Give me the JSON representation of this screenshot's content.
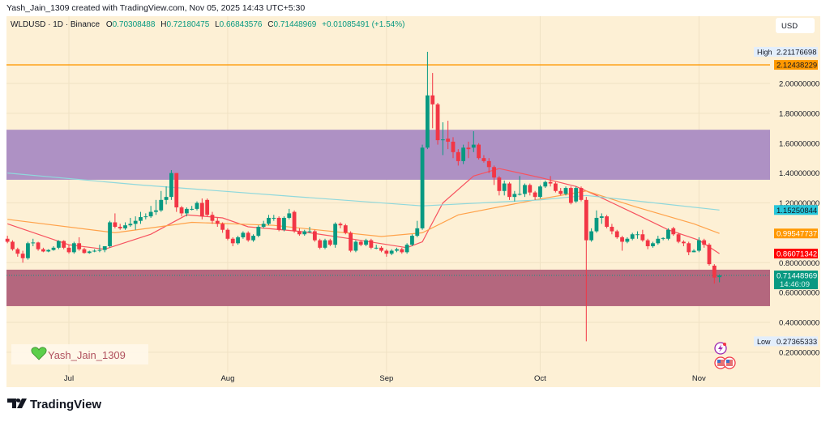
{
  "header": {
    "credit": "Yash_Jain_1309 created with TradingView.com, Nov 05, 2025 14:43 UTC+5:30"
  },
  "legend": {
    "symbol": "WLDUSD · 1D · Binance",
    "open_label": "O",
    "open": "0.70308488",
    "high_label": "H",
    "high": "0.72180475",
    "low_label": "L",
    "low": "0.66843576",
    "close_label": "C",
    "close": "0.71448969",
    "change": "+0.01085491 (+1.54%)"
  },
  "currency_button": "USD",
  "watermark": {
    "icon": "green-heart-icon",
    "text": "Yash_Jain_1309"
  },
  "footer": {
    "logo_text": "TradingView"
  },
  "colors": {
    "background": "#fdf0d5",
    "up": "#089981",
    "down": "#f23645",
    "resistance_zone": "#ae91c4",
    "support_zone": "#b4677e",
    "horizontal_line": "#ff9800",
    "ema_short": "#f7525f",
    "ema_mid": "#ffa24a",
    "ma_long": "#8fd8dc"
  },
  "chart_data": {
    "type": "candlestick",
    "title": "WLDUSD · 1D · Binance",
    "ylim": [
      0.1,
      2.3
    ],
    "y_ticks": [
      "2.00000000",
      "1.80000000",
      "1.60000000",
      "1.40000000",
      "1.20000000",
      "0.80000000",
      "0.60000000",
      "0.40000000",
      "0.20000000"
    ],
    "y_tick_values": [
      2.0,
      1.8,
      1.6,
      1.4,
      1.2,
      0.8,
      0.6,
      0.4,
      0.2
    ],
    "x_ticks": [
      {
        "label": "Jul",
        "date": "2025-07-01"
      },
      {
        "label": "Aug",
        "date": "2025-08-01"
      },
      {
        "label": "Sep",
        "date": "2025-09-01"
      },
      {
        "label": "Oct",
        "date": "2025-10-01"
      },
      {
        "label": "Nov",
        "date": "2025-11-01"
      }
    ],
    "grid": true,
    "price_labels": {
      "high": {
        "label": "High",
        "value": "2.21176698"
      },
      "hline": {
        "value": "2.12438229"
      },
      "ma_long": {
        "value": "1.15250844"
      },
      "ema_mid": {
        "value": "0.99547737"
      },
      "ema_short": {
        "value": "0.86071342"
      },
      "last": {
        "value": "0.71448969",
        "countdown": "14:46:09"
      },
      "low": {
        "label": "Low",
        "value": "0.27365333"
      }
    },
    "horizontal_line": 2.12438229,
    "zones": [
      {
        "name": "resistance",
        "top": 1.69,
        "bottom": 1.355
      },
      {
        "name": "support",
        "top": 0.753,
        "bottom": 0.509
      }
    ],
    "candles_format": [
      "date",
      "open",
      "high",
      "low",
      "close"
    ],
    "candles": [
      [
        "2025-06-19",
        0.96,
        0.98,
        0.93,
        0.94
      ],
      [
        "2025-06-20",
        0.94,
        0.95,
        0.88,
        0.89
      ],
      [
        "2025-06-21",
        0.89,
        0.9,
        0.84,
        0.86
      ],
      [
        "2025-06-22",
        0.86,
        0.88,
        0.8,
        0.83
      ],
      [
        "2025-06-23",
        0.83,
        0.94,
        0.82,
        0.93
      ],
      [
        "2025-06-24",
        0.93,
        0.96,
        0.91,
        0.935
      ],
      [
        "2025-06-25",
        0.935,
        0.94,
        0.88,
        0.89
      ],
      [
        "2025-06-26",
        0.89,
        0.9,
        0.87,
        0.875
      ],
      [
        "2025-06-27",
        0.875,
        0.89,
        0.87,
        0.885
      ],
      [
        "2025-06-28",
        0.885,
        0.91,
        0.88,
        0.9
      ],
      [
        "2025-06-29",
        0.9,
        0.95,
        0.89,
        0.945
      ],
      [
        "2025-06-30",
        0.945,
        0.95,
        0.89,
        0.9
      ],
      [
        "2025-07-01",
        0.9,
        0.92,
        0.86,
        0.87
      ],
      [
        "2025-07-02",
        0.87,
        0.94,
        0.86,
        0.93
      ],
      [
        "2025-07-03",
        0.93,
        0.97,
        0.88,
        0.89
      ],
      [
        "2025-07-04",
        0.89,
        0.9,
        0.86,
        0.865
      ],
      [
        "2025-07-05",
        0.865,
        0.88,
        0.86,
        0.875
      ],
      [
        "2025-07-06",
        0.875,
        0.89,
        0.87,
        0.88
      ],
      [
        "2025-07-07",
        0.88,
        0.92,
        0.87,
        0.885
      ],
      [
        "2025-07-08",
        0.885,
        0.91,
        0.87,
        0.91
      ],
      [
        "2025-07-09",
        0.91,
        1.08,
        0.9,
        1.07
      ],
      [
        "2025-07-10",
        1.07,
        1.13,
        1.03,
        1.04
      ],
      [
        "2025-07-11",
        1.04,
        1.06,
        1.02,
        1.03
      ],
      [
        "2025-07-12",
        1.03,
        1.07,
        1.02,
        1.05
      ],
      [
        "2025-07-13",
        1.05,
        1.1,
        1.04,
        1.06
      ],
      [
        "2025-07-14",
        1.06,
        1.11,
        1.02,
        1.08
      ],
      [
        "2025-07-15",
        1.08,
        1.14,
        1.06,
        1.105
      ],
      [
        "2025-07-16",
        1.105,
        1.13,
        1.09,
        1.11
      ],
      [
        "2025-07-17",
        1.11,
        1.18,
        1.1,
        1.14
      ],
      [
        "2025-07-18",
        1.14,
        1.22,
        1.12,
        1.15
      ],
      [
        "2025-07-19",
        1.15,
        1.28,
        1.14,
        1.22
      ],
      [
        "2025-07-20",
        1.22,
        1.31,
        1.19,
        1.24
      ],
      [
        "2025-07-21",
        1.24,
        1.42,
        1.22,
        1.4
      ],
      [
        "2025-07-22",
        1.4,
        1.4,
        1.14,
        1.17
      ],
      [
        "2025-07-23",
        1.17,
        1.18,
        1.11,
        1.13
      ],
      [
        "2025-07-24",
        1.13,
        1.17,
        1.11,
        1.16
      ],
      [
        "2025-07-25",
        1.16,
        1.18,
        1.15,
        1.16
      ],
      [
        "2025-07-26",
        1.16,
        1.21,
        1.15,
        1.2
      ],
      [
        "2025-07-27",
        1.2,
        1.23,
        1.09,
        1.11
      ],
      [
        "2025-07-28",
        1.22,
        1.23,
        1.11,
        1.12
      ],
      [
        "2025-07-29",
        1.12,
        1.14,
        1.06,
        1.08
      ],
      [
        "2025-07-30",
        1.08,
        1.1,
        1.04,
        1.06
      ],
      [
        "2025-07-31",
        1.06,
        1.07,
        1.0,
        1.02
      ],
      [
        "2025-08-01",
        1.02,
        1.03,
        0.95,
        0.96
      ],
      [
        "2025-08-02",
        0.96,
        0.97,
        0.91,
        0.93
      ],
      [
        "2025-08-03",
        0.93,
        0.98,
        0.92,
        0.97
      ],
      [
        "2025-08-04",
        0.97,
        1.01,
        0.96,
        1.0
      ],
      [
        "2025-08-05",
        1.0,
        1.01,
        0.94,
        0.95
      ],
      [
        "2025-08-06",
        0.95,
        0.99,
        0.94,
        0.98
      ],
      [
        "2025-08-07",
        0.98,
        1.05,
        0.97,
        1.04
      ],
      [
        "2025-08-08",
        1.04,
        1.08,
        1.03,
        1.06
      ],
      [
        "2025-08-09",
        1.06,
        1.12,
        1.05,
        1.1
      ],
      [
        "2025-08-10",
        1.1,
        1.12,
        1.08,
        1.1
      ],
      [
        "2025-08-11",
        1.1,
        1.11,
        1.01,
        1.02
      ],
      [
        "2025-08-12",
        1.02,
        1.11,
        1.01,
        1.1
      ],
      [
        "2025-08-13",
        1.1,
        1.16,
        1.09,
        1.13
      ],
      [
        "2025-08-14",
        1.14,
        1.15,
        1.0,
        1.01
      ],
      [
        "2025-08-15",
        1.01,
        1.03,
        0.98,
        0.99
      ],
      [
        "2025-08-16",
        0.99,
        1.02,
        0.98,
        1.01
      ],
      [
        "2025-08-17",
        1.01,
        1.04,
        1.0,
        1.01
      ],
      [
        "2025-08-18",
        1.01,
        1.02,
        0.94,
        0.95
      ],
      [
        "2025-08-19",
        0.95,
        0.96,
        0.89,
        0.9
      ],
      [
        "2025-08-20",
        0.9,
        0.96,
        0.89,
        0.95
      ],
      [
        "2025-08-21",
        0.95,
        0.96,
        0.91,
        0.92
      ],
      [
        "2025-08-22",
        0.92,
        1.07,
        0.9,
        1.06
      ],
      [
        "2025-08-23",
        1.06,
        1.07,
        1.03,
        1.05
      ],
      [
        "2025-08-24",
        1.05,
        1.06,
        0.99,
        1.0
      ],
      [
        "2025-08-25",
        1.0,
        1.01,
        0.87,
        0.88
      ],
      [
        "2025-08-26",
        0.88,
        0.95,
        0.87,
        0.94
      ],
      [
        "2025-08-27",
        0.94,
        0.95,
        0.91,
        0.92
      ],
      [
        "2025-08-28",
        0.92,
        0.96,
        0.91,
        0.95
      ],
      [
        "2025-08-29",
        0.95,
        0.96,
        0.89,
        0.9
      ],
      [
        "2025-08-30",
        0.9,
        0.92,
        0.89,
        0.9
      ],
      [
        "2025-08-31",
        0.9,
        0.91,
        0.87,
        0.88
      ],
      [
        "2025-09-01",
        0.88,
        0.89,
        0.84,
        0.86
      ],
      [
        "2025-09-02",
        0.86,
        0.89,
        0.85,
        0.88
      ],
      [
        "2025-09-03",
        0.88,
        0.9,
        0.87,
        0.89
      ],
      [
        "2025-09-04",
        0.89,
        0.9,
        0.86,
        0.87
      ],
      [
        "2025-09-05",
        0.87,
        0.93,
        0.86,
        0.92
      ],
      [
        "2025-09-06",
        0.92,
        0.99,
        0.91,
        0.98
      ],
      [
        "2025-09-07",
        0.98,
        1.08,
        0.97,
        1.03
      ],
      [
        "2025-09-08",
        1.03,
        1.59,
        1.02,
        1.57
      ],
      [
        "2025-09-09",
        1.57,
        2.21176698,
        1.56,
        1.92
      ],
      [
        "2025-09-10",
        1.92,
        2.07,
        1.7,
        1.86
      ],
      [
        "2025-09-11",
        1.86,
        1.87,
        1.59,
        1.62
      ],
      [
        "2025-09-12",
        1.62,
        1.74,
        1.52,
        1.625
      ],
      [
        "2025-09-13",
        1.63,
        1.75,
        1.56,
        1.61
      ],
      [
        "2025-09-14",
        1.61,
        1.64,
        1.5,
        1.54
      ],
      [
        "2025-09-15",
        1.54,
        1.56,
        1.45,
        1.48
      ],
      [
        "2025-09-16",
        1.48,
        1.59,
        1.46,
        1.57
      ],
      [
        "2025-09-17",
        1.57,
        1.61,
        1.5,
        1.56
      ],
      [
        "2025-09-18",
        1.57,
        1.68,
        1.54,
        1.59
      ],
      [
        "2025-09-19",
        1.59,
        1.6,
        1.49,
        1.5
      ],
      [
        "2025-09-20",
        1.5,
        1.52,
        1.47,
        1.48
      ],
      [
        "2025-09-21",
        1.48,
        1.5,
        1.4,
        1.44
      ],
      [
        "2025-09-22",
        1.44,
        1.45,
        1.32,
        1.37
      ],
      [
        "2025-09-23",
        1.37,
        1.38,
        1.25,
        1.28
      ],
      [
        "2025-09-24",
        1.28,
        1.35,
        1.25,
        1.33
      ],
      [
        "2025-09-25",
        1.33,
        1.34,
        1.22,
        1.24
      ],
      [
        "2025-09-26",
        1.24,
        1.28,
        1.21,
        1.26
      ],
      [
        "2025-09-27",
        1.26,
        1.38,
        1.25,
        1.26
      ],
      [
        "2025-09-28",
        1.26,
        1.33,
        1.24,
        1.32
      ],
      [
        "2025-09-29",
        1.32,
        1.33,
        1.25,
        1.27
      ],
      [
        "2025-09-30",
        1.27,
        1.28,
        1.22,
        1.24
      ],
      [
        "2025-10-01",
        1.24,
        1.32,
        1.23,
        1.31
      ],
      [
        "2025-10-02",
        1.31,
        1.35,
        1.3,
        1.34
      ],
      [
        "2025-10-03",
        1.34,
        1.38,
        1.31,
        1.33
      ],
      [
        "2025-10-04",
        1.33,
        1.34,
        1.27,
        1.28
      ],
      [
        "2025-10-05",
        1.28,
        1.3,
        1.25,
        1.26
      ],
      [
        "2025-10-06",
        1.26,
        1.31,
        1.25,
        1.3
      ],
      [
        "2025-10-07",
        1.3,
        1.31,
        1.19,
        1.2
      ],
      [
        "2025-10-08",
        1.21,
        1.31,
        1.2,
        1.3
      ],
      [
        "2025-10-09",
        1.3,
        1.31,
        1.21,
        1.22
      ],
      [
        "2025-10-10",
        1.22,
        1.24,
        0.27365333,
        0.95
      ],
      [
        "2025-10-11",
        0.95,
        1.03,
        0.94,
        1.01
      ],
      [
        "2025-10-12",
        1.01,
        1.15,
        1.0,
        1.1
      ],
      [
        "2025-10-13",
        1.1,
        1.13,
        1.06,
        1.11
      ],
      [
        "2025-10-14",
        1.11,
        1.12,
        1.03,
        1.04
      ],
      [
        "2025-10-15",
        1.04,
        1.06,
        0.99,
        1.01
      ],
      [
        "2025-10-16",
        1.01,
        1.02,
        0.96,
        0.97
      ],
      [
        "2025-10-17",
        0.97,
        0.98,
        0.88,
        0.94
      ],
      [
        "2025-10-18",
        0.94,
        0.97,
        0.93,
        0.96
      ],
      [
        "2025-10-19",
        0.96,
        1.0,
        0.95,
        0.99
      ],
      [
        "2025-10-20",
        0.99,
        1.01,
        0.96,
        0.99
      ],
      [
        "2025-10-21",
        0.99,
        1.02,
        0.94,
        0.95
      ],
      [
        "2025-10-22",
        0.95,
        0.96,
        0.89,
        0.91
      ],
      [
        "2025-10-23",
        0.91,
        0.94,
        0.9,
        0.93
      ],
      [
        "2025-10-24",
        0.93,
        0.98,
        0.92,
        0.96
      ],
      [
        "2025-10-25",
        0.96,
        0.97,
        0.95,
        0.965
      ],
      [
        "2025-10-26",
        0.96,
        1.03,
        0.95,
        1.02
      ],
      [
        "2025-10-27",
        1.03,
        1.04,
        0.98,
        0.99
      ],
      [
        "2025-10-28",
        0.99,
        1.0,
        0.93,
        0.94
      ],
      [
        "2025-10-29",
        0.94,
        0.95,
        0.91,
        0.93
      ],
      [
        "2025-10-30",
        0.93,
        0.94,
        0.85,
        0.87
      ],
      [
        "2025-10-31",
        0.87,
        0.89,
        0.87,
        0.88
      ],
      [
        "2025-11-01",
        0.88,
        0.97,
        0.87,
        0.95
      ],
      [
        "2025-11-02",
        0.95,
        0.96,
        0.9,
        0.92
      ],
      [
        "2025-11-03",
        0.92,
        0.93,
        0.78,
        0.79
      ],
      [
        "2025-11-04",
        0.78,
        0.79,
        0.66,
        0.7
      ],
      [
        "2025-11-05",
        0.70308488,
        0.72180475,
        0.66843576,
        0.71448969
      ]
    ],
    "lines": [
      {
        "key": "ema_short",
        "points": [
          [
            "2025-06-19",
            1.06
          ],
          [
            "2025-07-01",
            0.92
          ],
          [
            "2025-07-08",
            0.89
          ],
          [
            "2025-07-17",
            0.99
          ],
          [
            "2025-07-24",
            1.12
          ],
          [
            "2025-07-31",
            1.1
          ],
          [
            "2025-08-05",
            1.04
          ],
          [
            "2025-08-15",
            1.01
          ],
          [
            "2025-08-25",
            0.96
          ],
          [
            "2025-09-05",
            0.9
          ],
          [
            "2025-09-08",
            0.94
          ],
          [
            "2025-09-12",
            1.2
          ],
          [
            "2025-09-18",
            1.38
          ],
          [
            "2025-09-23",
            1.43
          ],
          [
            "2025-10-01",
            1.37
          ],
          [
            "2025-10-08",
            1.31
          ],
          [
            "2025-10-12",
            1.25
          ],
          [
            "2025-10-20",
            1.12
          ],
          [
            "2025-10-26",
            1.02
          ],
          [
            "2025-11-01",
            0.95
          ],
          [
            "2025-11-05",
            0.86071342
          ]
        ]
      },
      {
        "key": "ema_mid",
        "points": [
          [
            "2025-06-19",
            1.09
          ],
          [
            "2025-07-10",
            1.0
          ],
          [
            "2025-07-25",
            1.07
          ],
          [
            "2025-08-10",
            1.05
          ],
          [
            "2025-08-31",
            0.975
          ],
          [
            "2025-09-08",
            1.0
          ],
          [
            "2025-09-15",
            1.12
          ],
          [
            "2025-09-30",
            1.22
          ],
          [
            "2025-10-10",
            1.28
          ],
          [
            "2025-10-20",
            1.17
          ],
          [
            "2025-10-31",
            1.06
          ],
          [
            "2025-11-05",
            0.99547737
          ]
        ]
      },
      {
        "key": "ma_long",
        "points": [
          [
            "2025-06-19",
            1.4
          ],
          [
            "2025-07-15",
            1.32
          ],
          [
            "2025-08-15",
            1.24
          ],
          [
            "2025-09-08",
            1.18
          ],
          [
            "2025-10-01",
            1.22
          ],
          [
            "2025-10-10",
            1.25
          ],
          [
            "2025-11-05",
            1.15250844
          ]
        ]
      }
    ]
  }
}
